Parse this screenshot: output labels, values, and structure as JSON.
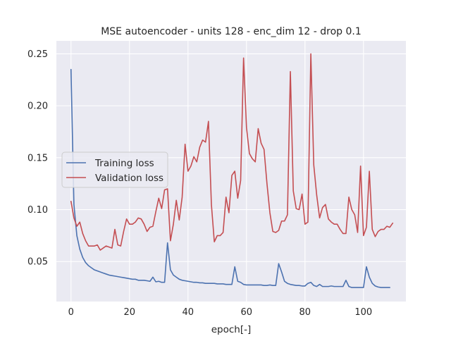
{
  "chart_data": {
    "type": "line",
    "title": "MSE autoencoder - units 128 - enc_dim 12 - drop 0.1",
    "xlabel": "epoch[-]",
    "ylabel": "",
    "xlim": [
      -5,
      114.5
    ],
    "ylim": [
      0.0115,
      0.2625
    ],
    "xticks": [
      0,
      20,
      40,
      60,
      80,
      100
    ],
    "yticks": [
      0.05,
      0.1,
      0.15,
      0.2,
      0.25
    ],
    "ytick_labels": [
      "0.05",
      "0.10",
      "0.15",
      "0.20",
      "0.25"
    ],
    "grid": true,
    "legend_position": "center-left",
    "x_start": 0,
    "series": [
      {
        "name": "Training loss",
        "color": "#4c72b0",
        "values": [
          0.235,
          0.105,
          0.075,
          0.062,
          0.054,
          0.049,
          0.046,
          0.044,
          0.042,
          0.041,
          0.04,
          0.039,
          0.038,
          0.037,
          0.0365,
          0.036,
          0.0355,
          0.035,
          0.0345,
          0.034,
          0.0335,
          0.033,
          0.033,
          0.032,
          0.032,
          0.032,
          0.0315,
          0.031,
          0.035,
          0.0305,
          0.031,
          0.03,
          0.03,
          0.068,
          0.042,
          0.037,
          0.035,
          0.033,
          0.032,
          0.0315,
          0.031,
          0.0305,
          0.03,
          0.03,
          0.0295,
          0.0295,
          0.029,
          0.029,
          0.029,
          0.029,
          0.0285,
          0.0285,
          0.0285,
          0.028,
          0.028,
          0.028,
          0.045,
          0.031,
          0.03,
          0.028,
          0.0275,
          0.0275,
          0.0275,
          0.0275,
          0.0275,
          0.0275,
          0.027,
          0.027,
          0.0275,
          0.027,
          0.027,
          0.048,
          0.04,
          0.031,
          0.029,
          0.028,
          0.0275,
          0.027,
          0.027,
          0.0265,
          0.0265,
          0.029,
          0.03,
          0.027,
          0.026,
          0.028,
          0.026,
          0.026,
          0.026,
          0.0265,
          0.026,
          0.026,
          0.026,
          0.026,
          0.032,
          0.026,
          0.025,
          0.025,
          0.025,
          0.025,
          0.025,
          0.045,
          0.035,
          0.029,
          0.0265,
          0.0255,
          0.025,
          0.025,
          0.025,
          0.025
        ]
      },
      {
        "name": "Validation loss",
        "color": "#c44e52",
        "values": [
          0.108,
          0.092,
          0.084,
          0.088,
          0.077,
          0.07,
          0.065,
          0.065,
          0.065,
          0.066,
          0.061,
          0.063,
          0.065,
          0.064,
          0.063,
          0.081,
          0.066,
          0.065,
          0.079,
          0.091,
          0.086,
          0.086,
          0.088,
          0.092,
          0.091,
          0.086,
          0.079,
          0.083,
          0.084,
          0.098,
          0.111,
          0.101,
          0.119,
          0.12,
          0.07,
          0.086,
          0.109,
          0.09,
          0.112,
          0.163,
          0.137,
          0.142,
          0.151,
          0.146,
          0.16,
          0.167,
          0.165,
          0.185,
          0.105,
          0.069,
          0.075,
          0.075,
          0.078,
          0.112,
          0.097,
          0.133,
          0.137,
          0.111,
          0.128,
          0.246,
          0.179,
          0.154,
          0.149,
          0.146,
          0.178,
          0.164,
          0.158,
          0.125,
          0.097,
          0.079,
          0.078,
          0.08,
          0.089,
          0.089,
          0.095,
          0.233,
          0.118,
          0.101,
          0.1,
          0.115,
          0.086,
          0.088,
          0.25,
          0.143,
          0.114,
          0.092,
          0.102,
          0.105,
          0.091,
          0.088,
          0.086,
          0.086,
          0.081,
          0.077,
          0.077,
          0.112,
          0.1,
          0.095,
          0.078,
          0.142,
          0.075,
          0.083,
          0.137,
          0.081,
          0.074,
          0.079,
          0.081,
          0.081,
          0.084,
          0.083,
          0.087
        ]
      }
    ]
  }
}
